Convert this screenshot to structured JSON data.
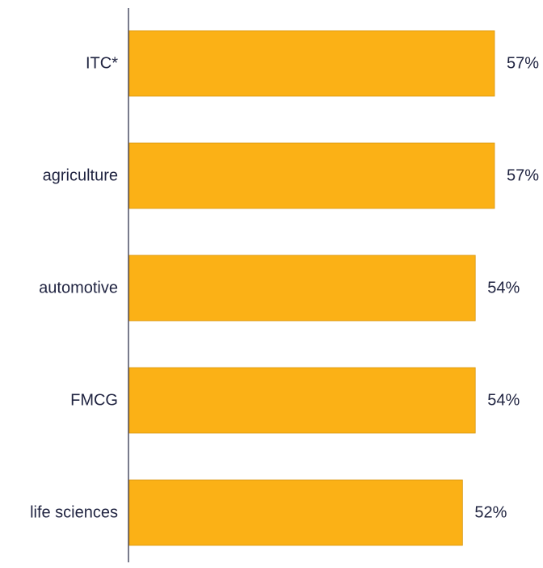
{
  "chart_data": {
    "type": "bar",
    "orientation": "horizontal",
    "categories": [
      "ITC*",
      "agriculture",
      "automotive",
      "FMCG",
      "life sciences"
    ],
    "values": [
      57,
      57,
      54,
      54,
      52
    ],
    "data_labels": [
      "57%",
      "57%",
      "54%",
      "54%",
      "52%"
    ],
    "unit": "%",
    "xlim": [
      0,
      57
    ],
    "grid": false,
    "legend": "none",
    "colors": {
      "bar": "#FBB116",
      "bar_edge": "#D9970E",
      "text": "#1F2340",
      "axis": "#1F2340"
    }
  }
}
